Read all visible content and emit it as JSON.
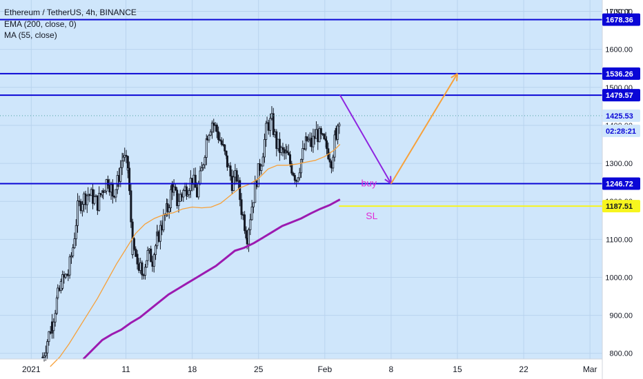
{
  "legend": {
    "symbol_line": "Ethereum / TetherUS, 4h, BINANCE",
    "ema_line": "EMA (200, close, 0)",
    "ma_line": "MA (55, close)"
  },
  "currency_label": "USDT",
  "colors": {
    "background": "#cfe6fb",
    "axis_background": "#ffffff",
    "level_line": "#0a06d6",
    "ema": "#9c1ab0",
    "ma": "#f7a13a",
    "candle": "#131722",
    "sl_line": "#f7f51e",
    "purple_arrow": "#8e24e0",
    "orange_arrow": "#f7a13a",
    "annotation": "#e02bd6",
    "last_price_tag": "#cfe6fb"
  },
  "chart_data": {
    "type": "candlestick",
    "title": "Ethereum / TetherUS, 4h, BINANCE",
    "ylim": [
      785,
      1730
    ],
    "xlim": [
      -3.3,
      60.3
    ],
    "y_ticks": [
      800,
      900,
      1000,
      1100,
      1200,
      1300,
      1400,
      1500,
      1600,
      1700
    ],
    "y_tick_labels": [
      "800.00",
      "900.00",
      "1000.00",
      "1100.00",
      "1200.00",
      "1300.00",
      "1400.00",
      "1500.00",
      "1600.00",
      "1700.00"
    ],
    "x_ticks": [
      {
        "day": 0,
        "label": "2021"
      },
      {
        "day": 10,
        "label": "11"
      },
      {
        "day": 17,
        "label": "18"
      },
      {
        "day": 24,
        "label": "25"
      },
      {
        "day": 31,
        "label": "Feb"
      },
      {
        "day": 38,
        "label": "8"
      },
      {
        "day": 45,
        "label": "15"
      },
      {
        "day": 52,
        "label": "22"
      },
      {
        "day": 59,
        "label": "Mar"
      }
    ],
    "x_unit": "days from 2021-01-01",
    "horizontal_levels": [
      {
        "value": 1678.36,
        "label": "1678.36"
      },
      {
        "value": 1536.26,
        "label": "1536.26"
      },
      {
        "value": 1479.57,
        "label": "1479.57"
      },
      {
        "value": 1246.72,
        "label": "1246.72"
      }
    ],
    "last_price": {
      "value": 1425.53,
      "label": "1425.53",
      "countdown": "02:28:21"
    },
    "stop_loss": {
      "value": 1187.51,
      "label": "1187.51",
      "from_day": 32.5
    },
    "price_path": [
      [
        1.2,
        790
      ],
      [
        1.7,
        835
      ],
      [
        2.2,
        880
      ],
      [
        2.8,
        950
      ],
      [
        3.3,
        990
      ],
      [
        3.9,
        1010
      ],
      [
        4.4,
        1080
      ],
      [
        4.9,
        1180
      ],
      [
        5.4,
        1205
      ],
      [
        6.0,
        1220
      ],
      [
        6.5,
        1210
      ],
      [
        7.0,
        1195
      ],
      [
        7.6,
        1235
      ],
      [
        8.1,
        1260
      ],
      [
        8.6,
        1220
      ],
      [
        9.1,
        1250
      ],
      [
        9.7,
        1320
      ],
      [
        10.2,
        1285
      ],
      [
        10.7,
        1080
      ],
      [
        11.2,
        1040
      ],
      [
        11.7,
        1010
      ],
      [
        12.3,
        1060
      ],
      [
        12.8,
        1050
      ],
      [
        13.3,
        1100
      ],
      [
        13.8,
        1140
      ],
      [
        14.4,
        1180
      ],
      [
        14.9,
        1240
      ],
      [
        15.4,
        1200
      ],
      [
        15.9,
        1220
      ],
      [
        16.5,
        1240
      ],
      [
        17.0,
        1260
      ],
      [
        17.5,
        1220
      ],
      [
        18.0,
        1280
      ],
      [
        18.6,
        1380
      ],
      [
        19.1,
        1410
      ],
      [
        19.6,
        1385
      ],
      [
        20.1,
        1350
      ],
      [
        20.7,
        1300
      ],
      [
        21.2,
        1250
      ],
      [
        21.7,
        1265
      ],
      [
        22.2,
        1180
      ],
      [
        22.8,
        1110
      ],
      [
        23.3,
        1190
      ],
      [
        23.8,
        1260
      ],
      [
        24.3,
        1310
      ],
      [
        24.9,
        1400
      ],
      [
        25.4,
        1410
      ],
      [
        25.9,
        1350
      ],
      [
        26.4,
        1330
      ],
      [
        27.0,
        1320
      ],
      [
        27.5,
        1290
      ],
      [
        28.0,
        1260
      ],
      [
        28.5,
        1310
      ],
      [
        29.1,
        1360
      ],
      [
        29.6,
        1350
      ],
      [
        30.1,
        1380
      ],
      [
        30.6,
        1365
      ],
      [
        31.2,
        1340
      ],
      [
        31.7,
        1310
      ],
      [
        32.2,
        1380
      ],
      [
        32.6,
        1435
      ]
    ],
    "ma_55": [
      [
        2.0,
        765
      ],
      [
        3.0,
        790
      ],
      [
        4.0,
        825
      ],
      [
        5.0,
        865
      ],
      [
        6.0,
        905
      ],
      [
        7.0,
        945
      ],
      [
        8.0,
        990
      ],
      [
        9.0,
        1035
      ],
      [
        10.0,
        1075
      ],
      [
        11.0,
        1115
      ],
      [
        12.0,
        1140
      ],
      [
        13.0,
        1155
      ],
      [
        14.0,
        1165
      ],
      [
        15.0,
        1170
      ],
      [
        16.0,
        1180
      ],
      [
        17.0,
        1185
      ],
      [
        18.0,
        1183
      ],
      [
        19.0,
        1185
      ],
      [
        20.0,
        1195
      ],
      [
        21.0,
        1215
      ],
      [
        22.0,
        1235
      ],
      [
        23.0,
        1245
      ],
      [
        24.0,
        1260
      ],
      [
        25.0,
        1285
      ],
      [
        26.0,
        1295
      ],
      [
        27.0,
        1295
      ],
      [
        28.0,
        1298
      ],
      [
        29.0,
        1303
      ],
      [
        30.0,
        1308
      ],
      [
        31.0,
        1318
      ],
      [
        32.0,
        1335
      ],
      [
        32.6,
        1350
      ]
    ],
    "ema_200": [
      [
        5.5,
        785
      ],
      [
        6.5,
        810
      ],
      [
        7.5,
        835
      ],
      [
        8.5,
        850
      ],
      [
        9.5,
        862
      ],
      [
        10.5,
        880
      ],
      [
        11.5,
        895
      ],
      [
        12.5,
        915
      ],
      [
        13.5,
        935
      ],
      [
        14.5,
        955
      ],
      [
        15.5,
        970
      ],
      [
        16.5,
        985
      ],
      [
        17.5,
        1000
      ],
      [
        18.5,
        1015
      ],
      [
        19.5,
        1030
      ],
      [
        20.5,
        1050
      ],
      [
        21.5,
        1070
      ],
      [
        22.5,
        1078
      ],
      [
        23.5,
        1090
      ],
      [
        24.5,
        1105
      ],
      [
        25.5,
        1120
      ],
      [
        26.5,
        1135
      ],
      [
        27.5,
        1145
      ],
      [
        28.5,
        1155
      ],
      [
        29.5,
        1168
      ],
      [
        30.5,
        1180
      ],
      [
        31.5,
        1190
      ],
      [
        32.6,
        1205
      ]
    ],
    "projection_down": {
      "from": [
        32.6,
        1480
      ],
      "to": [
        38.0,
        1246.72
      ]
    },
    "projection_up": {
      "from": [
        38.0,
        1246.72
      ],
      "to": [
        45.0,
        1536.26
      ]
    },
    "annotations": [
      {
        "text": "buy",
        "day": 36.0,
        "value": 1246.72
      },
      {
        "text": "SL",
        "day": 36.5,
        "value": 1187.51
      }
    ]
  }
}
